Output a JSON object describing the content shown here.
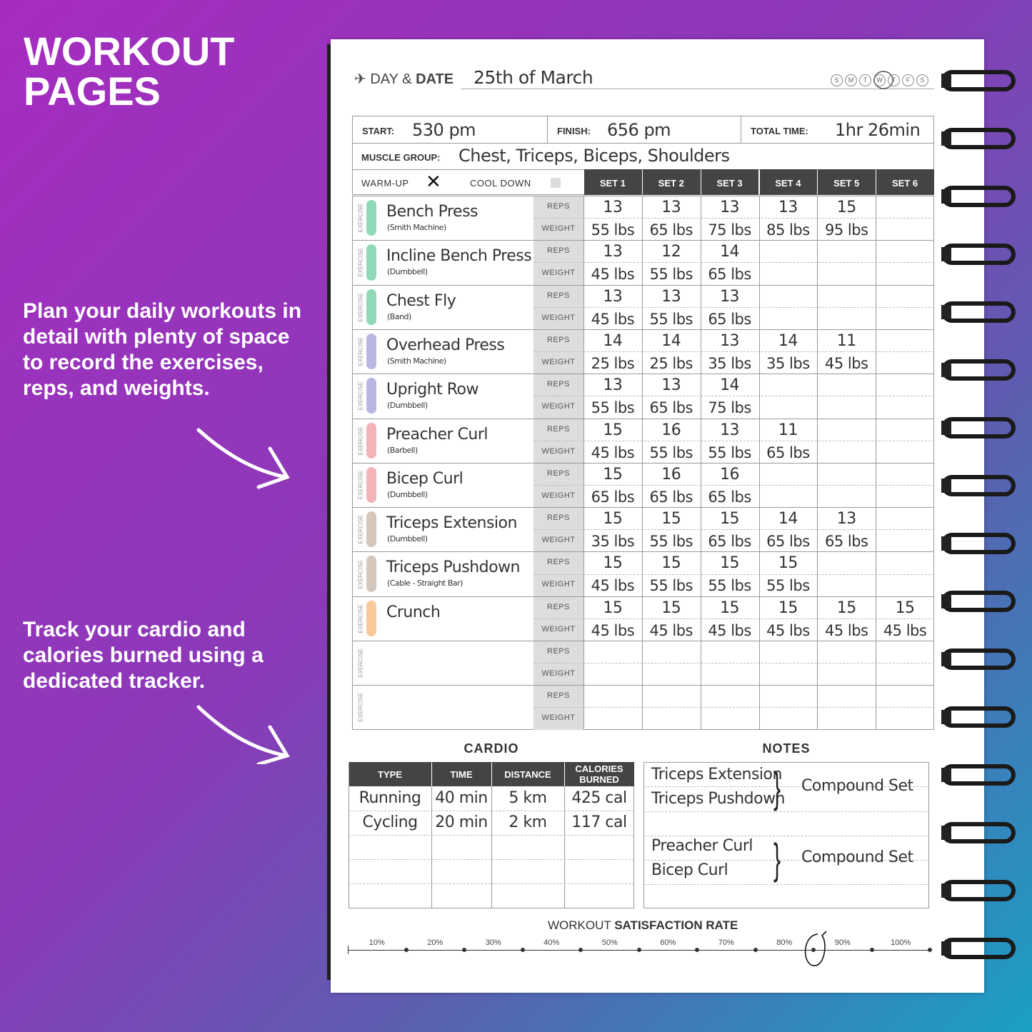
{
  "hero": {
    "title_lines": [
      "WORKOUT",
      "PAGES"
    ],
    "callouts": [
      "Plan your daily workouts in detail with plenty of space to record the exercises, reps, and weights.",
      "Track your cardio and calories burned using a dedicated tracker."
    ]
  },
  "header": {
    "day_label": "DAY &",
    "date_label": "DATE",
    "date": "25th of March",
    "weekdays": [
      "S",
      "M",
      "T",
      "W",
      "T",
      "F",
      "S"
    ]
  },
  "summary": {
    "start_label": "START:",
    "start": "530 pm",
    "finish_label": "FINISH:",
    "finish": "656 pm",
    "total_label": "TOTAL TIME:",
    "total": "1hr 26min",
    "muscle_label": "MUSCLE GROUP:",
    "muscle": "Chest, Triceps, Biceps, Shoulders"
  },
  "log": {
    "warmup_label": "WARM-UP",
    "cooldown_label": "COOL DOWN",
    "sets": [
      "SET 1",
      "SET 2",
      "SET 3",
      "SET 4",
      "SET 5",
      "SET 6"
    ],
    "exercise_label": "EXERCISE",
    "reps_label": "REPS",
    "weight_label": "WEIGHT",
    "exercises": [
      {
        "name": "Bench Press",
        "note": "(Smith Machine)",
        "color": "#8fd9b6",
        "reps": [
          "13",
          "13",
          "13",
          "13",
          "15"
        ],
        "weights": [
          "55 lbs",
          "65 lbs",
          "75 lbs",
          "85 lbs",
          "95 lbs"
        ]
      },
      {
        "name": "Incline Bench Press",
        "note": "(Dumbbell)",
        "color": "#8fd9b6",
        "reps": [
          "13",
          "12",
          "14"
        ],
        "weights": [
          "45 lbs",
          "55 lbs",
          "65 lbs"
        ]
      },
      {
        "name": "Chest Fly",
        "note": "(Band)",
        "color": "#8fd9b6",
        "reps": [
          "13",
          "13",
          "13"
        ],
        "weights": [
          "45 lbs",
          "55 lbs",
          "65 lbs"
        ]
      },
      {
        "name": "Overhead Press",
        "note": "(Smith Machine)",
        "color": "#b9b6e3",
        "reps": [
          "14",
          "14",
          "13",
          "14",
          "11"
        ],
        "weights": [
          "25 lbs",
          "25 lbs",
          "35 lbs",
          "35 lbs",
          "45 lbs"
        ]
      },
      {
        "name": "Upright Row",
        "note": "(Dumbbell)",
        "color": "#b9b6e3",
        "reps": [
          "13",
          "13",
          "14"
        ],
        "weights": [
          "55 lbs",
          "65 lbs",
          "75 lbs"
        ]
      },
      {
        "name": "Preacher Curl",
        "note": "(Barbell)",
        "color": "#f4b3b8",
        "reps": [
          "15",
          "16",
          "13",
          "11"
        ],
        "weights": [
          "45 lbs",
          "55 lbs",
          "55 lbs",
          "65 lbs"
        ]
      },
      {
        "name": "Bicep Curl",
        "note": "(Dumbbell)",
        "color": "#f4b3b8",
        "reps": [
          "15",
          "16",
          "16"
        ],
        "weights": [
          "65 lbs",
          "65 lbs",
          "65 lbs"
        ]
      },
      {
        "name": "Triceps Extension",
        "note": "(Dumbbell)",
        "color": "#d5c6bc",
        "reps": [
          "15",
          "15",
          "15",
          "14",
          "13"
        ],
        "weights": [
          "35 lbs",
          "55 lbs",
          "65 lbs",
          "65 lbs",
          "65 lbs"
        ]
      },
      {
        "name": "Triceps Pushdown",
        "note": "(Cable - Straight Bar)",
        "color": "#d5c6bc",
        "reps": [
          "15",
          "15",
          "15",
          "15"
        ],
        "weights": [
          "45 lbs",
          "55 lbs",
          "55 lbs",
          "55 lbs"
        ]
      },
      {
        "name": "Crunch",
        "color": "#f8c99a",
        "reps": [
          "15",
          "15",
          "15",
          "15",
          "15",
          "15"
        ],
        "weights": [
          "45 lbs",
          "45 lbs",
          "45 lbs",
          "45 lbs",
          "45 lbs",
          "45 lbs"
        ]
      },
      {
        "reps": [],
        "weights": []
      },
      {
        "reps": [],
        "weights": []
      }
    ]
  },
  "cardio": {
    "title": "CARDIO",
    "headers": [
      "TYPE",
      "TIME",
      "DISTANCE",
      "CALORIES BURNED"
    ],
    "rows": [
      [
        "Running",
        "40 min",
        "5 km",
        "425 cal"
      ],
      [
        "Cycling",
        "20 min",
        "2 km",
        "117 cal"
      ]
    ]
  },
  "notes": {
    "title": "NOTES",
    "groups": [
      {
        "items": [
          "Triceps Extension",
          "Triceps Pushdown"
        ],
        "label": "Compound Set"
      },
      {
        "items": [
          "Preacher Curl",
          "Bicep Curl"
        ],
        "label": "Compound Set"
      }
    ]
  },
  "satisfaction": {
    "title_plain": "WORKOUT",
    "title_bold": "SATISFACTION RATE",
    "scale": [
      "10%",
      "20%",
      "30%",
      "40%",
      "50%",
      "60%",
      "70%",
      "80%",
      "90%",
      "100%"
    ]
  }
}
